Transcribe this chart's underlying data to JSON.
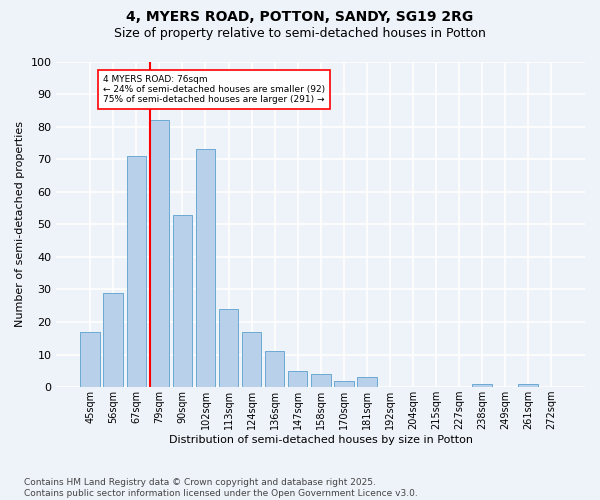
{
  "title1": "4, MYERS ROAD, POTTON, SANDY, SG19 2RG",
  "title2": "Size of property relative to semi-detached houses in Potton",
  "xlabel": "Distribution of semi-detached houses by size in Potton",
  "ylabel": "Number of semi-detached properties",
  "bar_labels": [
    "45sqm",
    "56sqm",
    "67sqm",
    "79sqm",
    "90sqm",
    "102sqm",
    "113sqm",
    "124sqm",
    "136sqm",
    "147sqm",
    "158sqm",
    "170sqm",
    "181sqm",
    "192sqm",
    "204sqm",
    "215sqm",
    "227sqm",
    "238sqm",
    "249sqm",
    "261sqm",
    "272sqm"
  ],
  "bar_values": [
    17,
    29,
    71,
    82,
    53,
    73,
    24,
    17,
    11,
    5,
    4,
    2,
    3,
    0,
    0,
    0,
    0,
    1,
    0,
    1,
    0
  ],
  "bar_color": "#b8d0ea",
  "bar_edge_color": "#6aaad4",
  "vline_color": "red",
  "annotation_title": "4 MYERS ROAD: 76sqm",
  "annotation_line1": "← 24% of semi-detached houses are smaller (92)",
  "annotation_line2": "75% of semi-detached houses are larger (291) →",
  "annotation_box_color": "white",
  "annotation_box_edge": "red",
  "ylim": [
    0,
    100
  ],
  "yticks": [
    0,
    10,
    20,
    30,
    40,
    50,
    60,
    70,
    80,
    90,
    100
  ],
  "footer": "Contains HM Land Registry data © Crown copyright and database right 2025.\nContains public sector information licensed under the Open Government Licence v3.0.",
  "bg_color": "#eef2f9",
  "grid_color": "white",
  "title1_fontsize": 10,
  "title2_fontsize": 9,
  "xlabel_fontsize": 8,
  "ylabel_fontsize": 8,
  "tick_fontsize": 7,
  "footer_fontsize": 6.5
}
